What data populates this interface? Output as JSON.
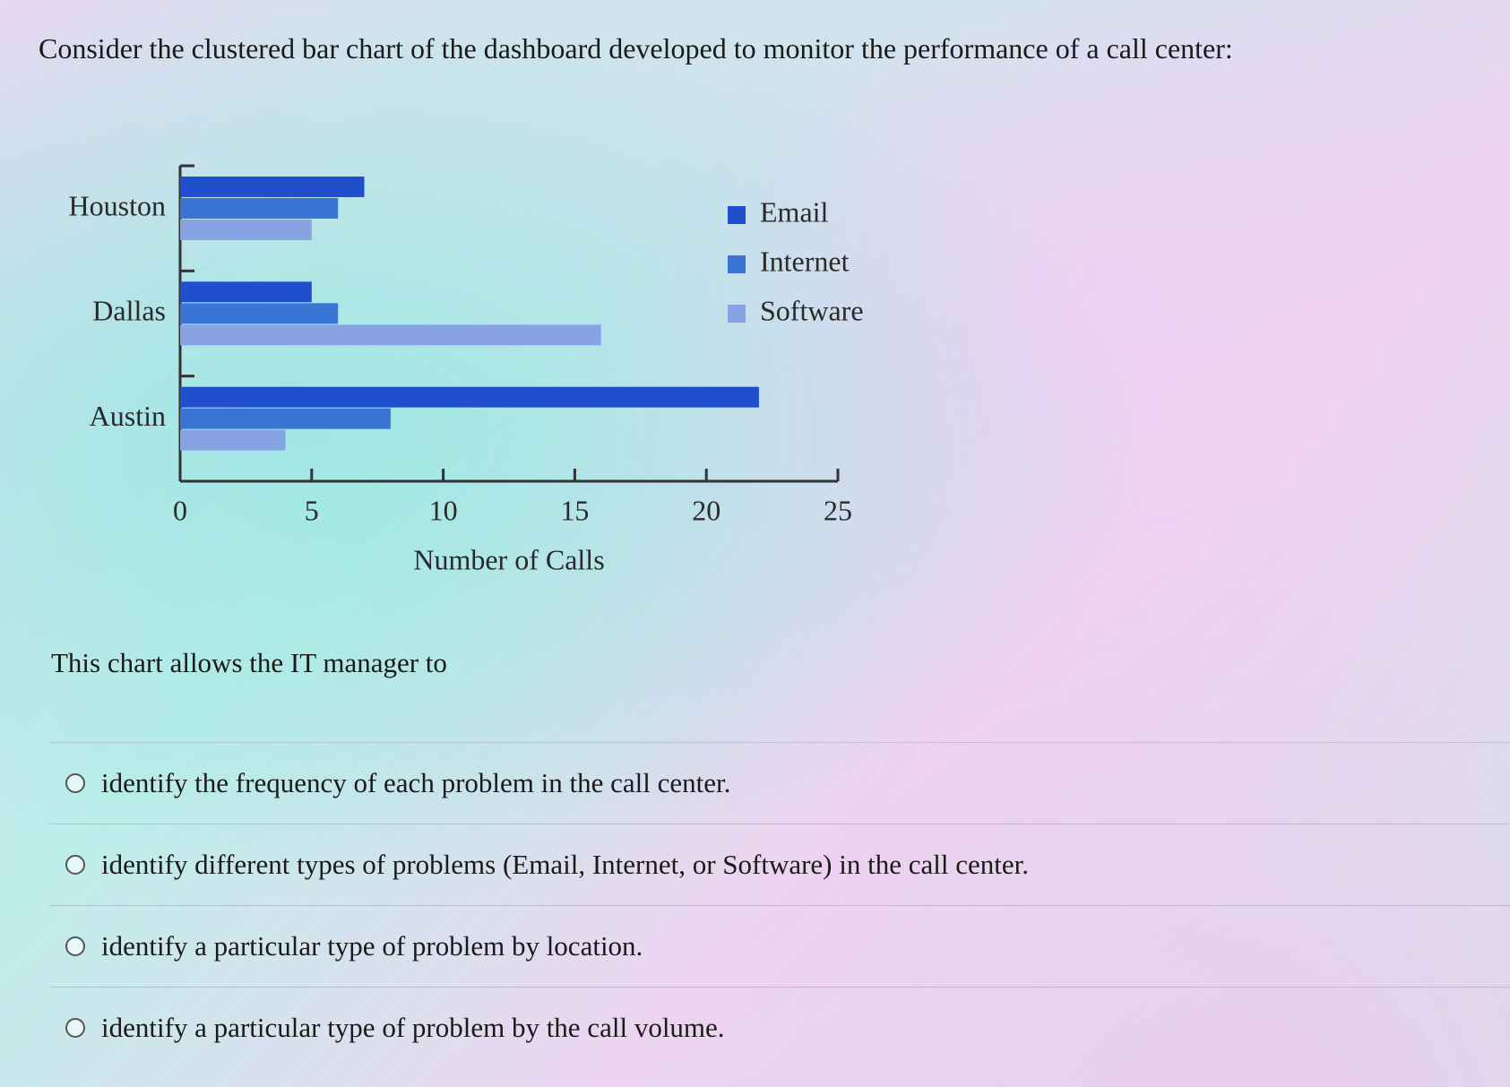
{
  "question": "Consider the clustered bar chart of the dashboard developed to monitor the performance of a call center:",
  "chart_data": {
    "type": "bar",
    "orientation": "horizontal",
    "categories": [
      "Houston",
      "Dallas",
      "Austin"
    ],
    "series": [
      {
        "name": "Email",
        "color": "#1f4fcc",
        "values": [
          7,
          5,
          22
        ]
      },
      {
        "name": "Internet",
        "color": "#3a74d4",
        "values": [
          6,
          6,
          8
        ]
      },
      {
        "name": "Software",
        "color": "#87a3e4",
        "values": [
          5,
          16,
          4
        ]
      }
    ],
    "xlabel": "Number of Calls",
    "xlim": [
      0,
      25
    ],
    "xticks": [
      0,
      5,
      10,
      15,
      20,
      25
    ],
    "legend": "right"
  },
  "prompt": "This chart allows the IT manager to",
  "options": [
    "identify the frequency of each problem in the call center.",
    "identify different types of problems (Email, Internet, or Software) in the call center.",
    "identify a particular type of problem by location.",
    "identify a particular type of problem by the call volume."
  ]
}
